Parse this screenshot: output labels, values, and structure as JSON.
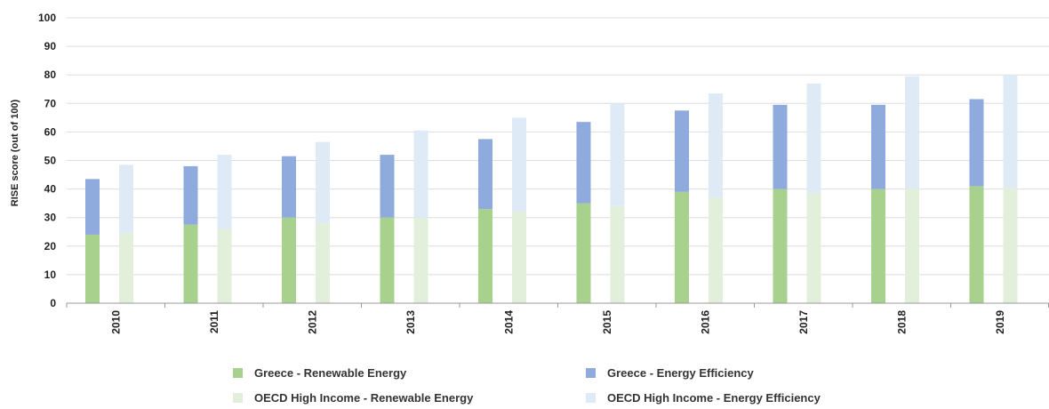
{
  "chart_data": {
    "type": "bar",
    "stacked": true,
    "title": "",
    "xlabel": "",
    "ylabel": "RISE score (out of 100)",
    "ylim": [
      0,
      100
    ],
    "yticks": [
      0,
      10,
      20,
      30,
      40,
      50,
      60,
      70,
      80,
      90,
      100
    ],
    "grid": true,
    "legend_position": "bottom",
    "categories": [
      "2010",
      "2011",
      "2012",
      "2013",
      "2014",
      "2015",
      "2016",
      "2017",
      "2018",
      "2019"
    ],
    "groups": [
      {
        "name": "Greece",
        "series": [
          {
            "name": "Greece - Renewable Energy",
            "color": "#a9d18e",
            "values": [
              24,
              27.5,
              30,
              30,
              33,
              35,
              39,
              40,
              40,
              41
            ]
          },
          {
            "name": "Greece - Energy Efficiency",
            "color": "#8faadc",
            "values": [
              19.5,
              20.5,
              21.5,
              22,
              24.5,
              28.5,
              28.5,
              29.5,
              29.5,
              30.5
            ]
          }
        ]
      },
      {
        "name": "OECD High Income",
        "series": [
          {
            "name": "OECD High Income - Renewable Energy",
            "color": "#e2efda",
            "values": [
              24.5,
              26,
              28,
              30,
              32,
              34,
              37,
              38.5,
              40,
              40.5
            ]
          },
          {
            "name": "OECD High Income - Energy Efficiency",
            "color": "#deebf7",
            "values": [
              24,
              26,
              28.5,
              30.5,
              33,
              36,
              36.5,
              38.5,
              39.5,
              39.5
            ]
          }
        ]
      }
    ]
  }
}
